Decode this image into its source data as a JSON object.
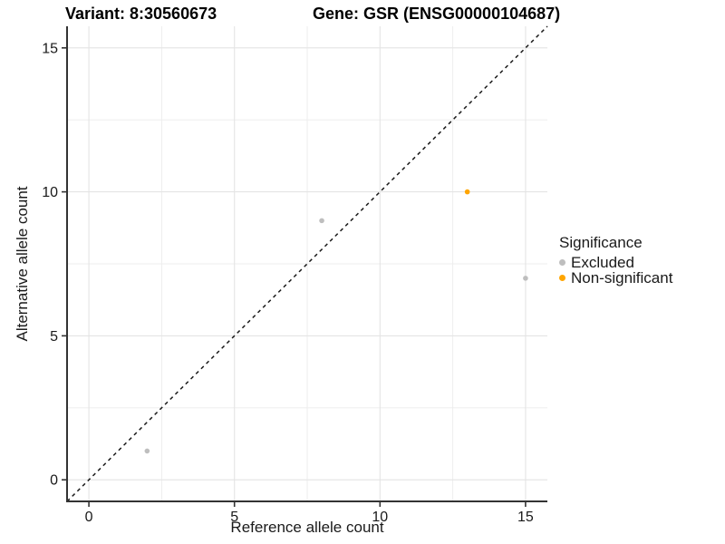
{
  "titles": {
    "variant": "Variant: 8:30560673",
    "gene": "Gene: GSR (ENSG00000104687)"
  },
  "legend": {
    "title": "Significance",
    "items": [
      {
        "label": "Excluded",
        "color": "#BEBEBE"
      },
      {
        "label": "Non-significant",
        "color": "#FFA500"
      }
    ]
  },
  "chart_data": {
    "type": "scatter",
    "title": "Variant: 8:30560673   Gene: GSR (ENSG00000104687)",
    "xlabel": "Reference allele count",
    "ylabel": "Alternative allele count",
    "xlim": [
      -0.75,
      15.75
    ],
    "ylim": [
      -0.75,
      15.75
    ],
    "x_ticks": [
      0,
      5,
      10,
      15
    ],
    "y_ticks": [
      0,
      5,
      10,
      15
    ],
    "x_minor_ticks": [
      2.5,
      7.5,
      12.5
    ],
    "y_minor_ticks": [
      2.5,
      7.5,
      12.5
    ],
    "grid": true,
    "legend_position": "right",
    "series": [
      {
        "name": "Excluded",
        "color": "#BEBEBE",
        "points": [
          [
            2,
            1
          ],
          [
            8,
            9
          ],
          [
            15,
            7
          ]
        ]
      },
      {
        "name": "Non-significant",
        "color": "#FFA500",
        "points": [
          [
            13,
            10
          ]
        ]
      }
    ],
    "reference_line": {
      "type": "identity",
      "slope": 1,
      "intercept": 0,
      "style": "dashed",
      "color": "#1a1a1a"
    }
  },
  "style_colors": {
    "grid_major": "#e4e4e4",
    "grid_minor": "#ececec",
    "axis_line": "#333333",
    "tick_text": "#1a1a1a",
    "point_excluded": "#BEBEBE",
    "point_non_significant": "#FFA500"
  }
}
